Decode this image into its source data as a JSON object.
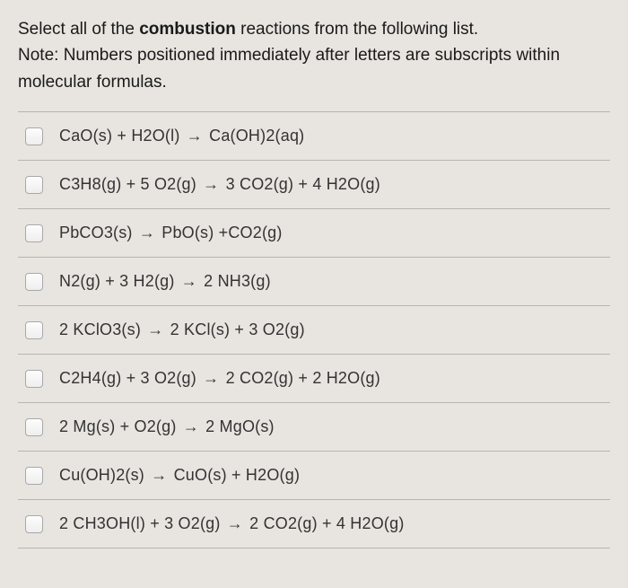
{
  "question": {
    "part1": "Select all of the ",
    "bold": "combustion",
    "part2": " reactions from the following list.",
    "note": "Note: Numbers positioned immediately after letters are subscripts within molecular formulas."
  },
  "arrow": "→",
  "options": [
    {
      "lhs": "CaO(s) + H2O(l)",
      "rhs": "Ca(OH)2(aq)"
    },
    {
      "lhs": "C3H8(g) + 5 O2(g)",
      "rhs": "3 CO2(g) + 4 H2O(g)"
    },
    {
      "lhs": "PbCO3(s)",
      "rhs": "PbO(s) +CO2(g)"
    },
    {
      "lhs": "N2(g) + 3 H2(g)",
      "rhs": "2 NH3(g)"
    },
    {
      "lhs": "2 KClO3(s)",
      "rhs": "2 KCl(s) + 3 O2(g)"
    },
    {
      "lhs": "C2H4(g) + 3 O2(g)",
      "rhs": "2 CO2(g) + 2 H2O(g)"
    },
    {
      "lhs": "2 Mg(s) + O2(g)",
      "rhs": "2 MgO(s)"
    },
    {
      "lhs": "Cu(OH)2(s)",
      "rhs": "CuO(s) + H2O(g)"
    },
    {
      "lhs": "2 CH3OH(l) + 3 O2(g)",
      "rhs": "2 CO2(g) + 4 H2O(g)"
    }
  ],
  "colors": {
    "background": "#e8e5e0",
    "text": "#2a2a2a",
    "border": "#b8b5b0"
  }
}
